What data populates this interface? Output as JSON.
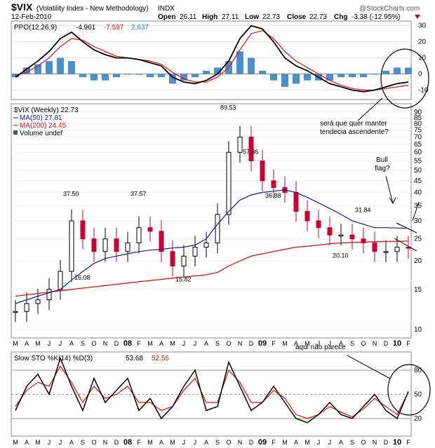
{
  "header": {
    "symbol": "$VIX",
    "name": "(Volatility Index - New Methodology)",
    "exchange": "INDX",
    "date": "12-Feb-2010",
    "open_label": "Open",
    "open": "26.11",
    "high_label": "High",
    "high": "27.11",
    "low_label": "Low",
    "low": "22.73",
    "close_label": "Close",
    "close": "22.73",
    "chg_label": "Chg",
    "chg": "-3.38 (-12.95%)",
    "watermark": "@StockCharts.com"
  },
  "ppo_panel": {
    "label": "PPO(12,26,9)",
    "v1": "-4.961",
    "v2": "-7.597",
    "v3": "2.637",
    "ticks": [
      "30",
      "20",
      "10",
      "0",
      "-10"
    ]
  },
  "price_panel": {
    "legend": [
      "$VIX (Weekly) 22.73",
      "MA(50) 27.81",
      "MA(200) 24.45",
      "Volume undef"
    ],
    "ticks": [
      "90",
      "85",
      "80",
      "75",
      "70",
      "65",
      "60",
      "55",
      "50",
      "45",
      "40",
      "35",
      "30",
      "25",
      "20",
      "15",
      "10"
    ],
    "peak_labels": [
      {
        "text": "37.50"
      },
      {
        "text": "37.57"
      },
      {
        "text": "16.08"
      },
      {
        "text": "15.82"
      },
      {
        "text": "89.53"
      },
      {
        "text": "57.36"
      },
      {
        "text": "36.88"
      },
      {
        "text": "31.84"
      },
      {
        "text": "20.10"
      }
    ]
  },
  "sto_panel": {
    "label": "Slow STO %K(14) %D(3)",
    "v1": "53.68",
    "v2": "52.55",
    "ticks": [
      "80",
      "50",
      "20"
    ]
  },
  "x_axis": {
    "labels": [
      "M",
      "A",
      "M",
      "J",
      "J",
      "A",
      "S",
      "O",
      "N",
      "D",
      "08",
      "F",
      "M",
      "A",
      "M",
      "J",
      "J",
      "A",
      "S",
      "O",
      "N",
      "D",
      "09",
      "F",
      "M",
      "A",
      "M",
      "J",
      "J",
      "A",
      "S",
      "O",
      "N",
      "D",
      "10",
      "F"
    ]
  },
  "annotations": {
    "question": "será que quer manter tendecia ascendente?",
    "line1": "será que quer manter",
    "line2": "tendecia ascendente?",
    "bull1": "Bull",
    "bull2": "flag?",
    "aqui": "aqui não parece"
  },
  "colors": {
    "up": "#000000",
    "down": "#cc0033",
    "ma50": "#1a1a8c",
    "ma200": "#dd1111",
    "histogram": "#4a90d0",
    "signal": "#dd1111"
  },
  "chart_data": [
    {
      "type": "line",
      "title": "PPO(12,26,9)",
      "series": [
        {
          "name": "PPO(12,26,9)",
          "values": [
            -2,
            3,
            8,
            14,
            22,
            26,
            20,
            15,
            12,
            10,
            10,
            9,
            7,
            5,
            -2,
            -5,
            -6,
            -4,
            0,
            8,
            22,
            30,
            28,
            20,
            10,
            5,
            2,
            -2,
            -6,
            -8,
            -10,
            -11,
            -10,
            -8,
            -6,
            -5
          ]
        },
        {
          "name": "Signal",
          "values": [
            -1,
            1,
            5,
            10,
            17,
            22,
            21,
            17,
            14,
            11,
            10,
            9,
            8,
            6,
            1,
            -3,
            -5,
            -5,
            -2,
            4,
            15,
            25,
            27,
            22,
            14,
            8,
            4,
            0,
            -4,
            -7,
            -9,
            -10,
            -10,
            -9,
            -8,
            -7
          ]
        }
      ],
      "ylim": [
        -15,
        32
      ]
    },
    {
      "type": "line",
      "title": "$VIX (Weekly) 22.73",
      "x": [
        "M",
        "A",
        "M",
        "J",
        "J",
        "A",
        "S",
        "O",
        "N",
        "D",
        "08",
        "F",
        "M",
        "A",
        "M",
        "J",
        "J",
        "A",
        "S",
        "O",
        "N",
        "D",
        "09",
        "F",
        "M",
        "A",
        "M",
        "J",
        "J",
        "A",
        "S",
        "O",
        "N",
        "D",
        "10",
        "F"
      ],
      "series": [
        {
          "name": "$VIX (Weekly)",
          "values": [
            12,
            13,
            13.5,
            15,
            18,
            30,
            25,
            22,
            25,
            22,
            24,
            28,
            27,
            22,
            19,
            21,
            23,
            24,
            32,
            60,
            70,
            55,
            45,
            42,
            40,
            33,
            30,
            28,
            26,
            26,
            25,
            24,
            22,
            22,
            23,
            22.73
          ]
        },
        {
          "name": "MA(50)",
          "values": [
            13,
            13.5,
            14,
            14.5,
            15,
            16.5,
            18,
            19.5,
            20.5,
            21,
            21.5,
            22,
            22.3,
            22.5,
            22.8,
            23,
            23.5,
            25,
            29,
            33,
            37,
            39,
            40,
            40.5,
            41,
            40,
            38,
            36,
            34,
            32,
            30,
            29,
            28,
            28,
            27.9,
            27.81
          ]
        },
        {
          "name": "MA(200)",
          "values": [
            14,
            14.2,
            14.4,
            14.6,
            14.8,
            15,
            15.2,
            15.4,
            15.6,
            15.8,
            16,
            16.2,
            16.4,
            16.6,
            16.8,
            17,
            17.2,
            17.4,
            17.8,
            19,
            20,
            21,
            21.5,
            22,
            22.5,
            23,
            23.2,
            23.5,
            23.8,
            24,
            24.1,
            24.2,
            24.3,
            24.35,
            24.4,
            24.45
          ]
        }
      ],
      "ylim": [
        10,
        90
      ]
    },
    {
      "type": "line",
      "title": "Slow STO %K(14) %D(3)",
      "series": [
        {
          "name": "%K(14)",
          "values": [
            30,
            60,
            75,
            50,
            95,
            60,
            30,
            70,
            40,
            55,
            70,
            30,
            45,
            20,
            35,
            60,
            80,
            30,
            35,
            90,
            60,
            30,
            40,
            60,
            40,
            20,
            15,
            25,
            40,
            25,
            20,
            35,
            50,
            30,
            20,
            53.68
          ]
        },
        {
          "name": "%D(3)",
          "values": [
            35,
            55,
            65,
            60,
            85,
            65,
            40,
            60,
            45,
            50,
            60,
            40,
            40,
            30,
            35,
            55,
            70,
            40,
            40,
            80,
            65,
            40,
            40,
            55,
            45,
            25,
            20,
            25,
            35,
            28,
            22,
            32,
            45,
            35,
            25,
            52.55
          ]
        }
      ],
      "ylim": [
        0,
        100
      ]
    }
  ]
}
